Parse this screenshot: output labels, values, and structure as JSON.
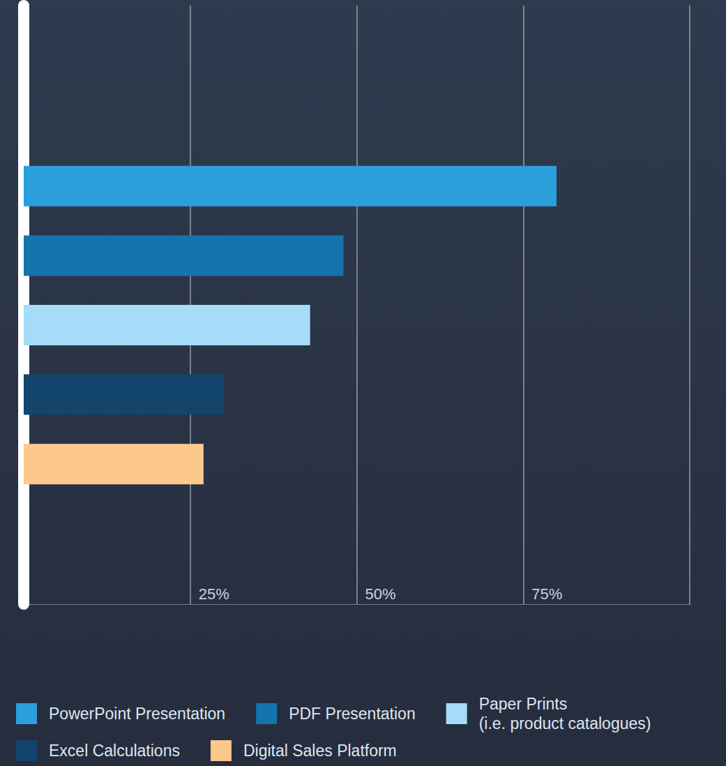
{
  "chart_data": {
    "type": "bar",
    "orientation": "horizontal",
    "categories": [
      "PowerPoint Presentation",
      "PDF Presentation",
      "Paper Prints (i.e. product catalogues)",
      "Excel Calculations",
      "Digital Sales Platform"
    ],
    "values": [
      80,
      48,
      43,
      30,
      27
    ],
    "colors": [
      "#2b9fdc",
      "#1474ad",
      "#a5dcf7",
      "#13446b",
      "#fec78b"
    ],
    "xlim": [
      0,
      100
    ],
    "xticks": [
      {
        "value": 25,
        "label": "25%"
      },
      {
        "value": 50,
        "label": "50%"
      },
      {
        "value": 75,
        "label": "75%"
      }
    ],
    "grid": true,
    "legend": "bottom",
    "tick_labels": "x"
  }
}
